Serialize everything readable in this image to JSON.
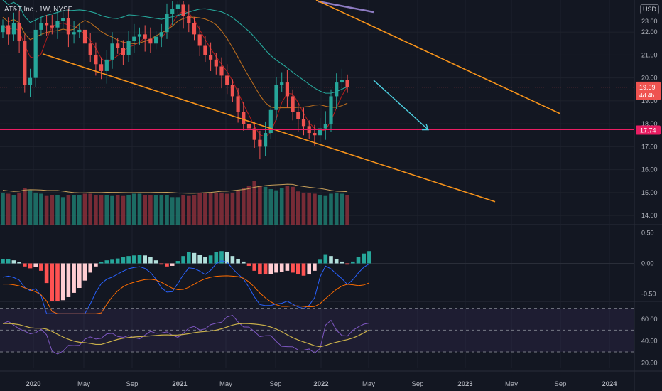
{
  "symbol_title": "AT&T Inc., 1W, NYSE",
  "currency": "USD",
  "colors": {
    "background": "#131722",
    "up": "#26a69a",
    "down": "#ef5350",
    "up_volume": "#1f7a6e",
    "down_volume": "#8a2f3a",
    "trendline": "#f7931a",
    "projection_arrow": "#4dd0e1",
    "support_line": "#e91e63",
    "price_badge": "#ef5350",
    "support_badge": "#e91e63",
    "ma_red": "#b71c1c",
    "ma_orange": "#b86c1e",
    "ma_teal": "#26a69a",
    "ma_purple": "#8e7cc3",
    "macd_line": "#2962ff",
    "signal_line": "#ff6d00",
    "rsi_line": "#7e57c2",
    "rsi_ma": "#c9b04a"
  },
  "chart_data": [
    {
      "type": "candlestick",
      "panel": "price",
      "title": "AT&T Inc., 1W, NYSE",
      "y_unit": "USD",
      "ylim": [
        13.6,
        23.4
      ],
      "y_ticks": [
        "14.00",
        "15.00",
        "16.00",
        "17.00",
        "18.00",
        "19.00",
        "20.00",
        "21.00",
        "22.00"
      ],
      "x_tick_labels": [
        "2020",
        "May",
        "Sep",
        "2021",
        "May",
        "Sep",
        "2022",
        "May",
        "Sep",
        "2023",
        "May",
        "Sep",
        "2024"
      ],
      "last_price": "19.59",
      "countdown": "4d 4h",
      "support_level": 17.74,
      "support_label": "17.74",
      "volume_overlay": true,
      "annotations": [
        "descending channel upper trendline",
        "descending channel lower trendline",
        "projected move arrow to 17.74",
        "horizontal support 17.74"
      ]
    },
    {
      "type": "histogram+line",
      "panel": "MACD",
      "ylim": [
        -0.62,
        0.62
      ],
      "y_ticks": [
        "0.50",
        "0.00",
        "-0.50"
      ],
      "series": [
        {
          "kind": "histogram",
          "values": [
            0.07,
            0.07,
            0.05,
            0.02,
            -0.05,
            -0.08,
            -0.06,
            -0.12,
            -0.32,
            -0.62,
            -0.62,
            -0.6,
            -0.55,
            -0.48,
            -0.4,
            -0.28,
            -0.15,
            -0.05,
            0.02,
            0.05,
            0.06,
            0.08,
            0.1,
            0.12,
            0.13,
            0.14,
            0.13,
            0.1,
            0.05,
            -0.02,
            -0.05,
            -0.04,
            0.04,
            0.12,
            0.18,
            0.17,
            0.14,
            0.1,
            0.13,
            0.18,
            0.2,
            0.18,
            0.12,
            0.07,
            0.03,
            -0.04,
            -0.12,
            -0.18,
            -0.18,
            -0.17,
            -0.15,
            -0.14,
            -0.12,
            -0.15,
            -0.18,
            -0.2,
            -0.18,
            -0.12,
            0.06,
            0.15,
            0.12,
            0.07,
            0.03,
            -0.02,
            0.03,
            0.1,
            0.16,
            0.2
          ]
        }
      ]
    },
    {
      "type": "line",
      "panel": "RSI",
      "ylim": [
        15,
        75
      ],
      "y_ticks": [
        "60.00",
        "40.00",
        "20.00"
      ],
      "bands": [
        30,
        50,
        70
      ],
      "series": [
        {
          "name": "",
          "values": [
            56,
            56,
            55,
            53,
            48,
            45,
            49,
            52,
            44,
            30,
            30,
            31,
            34,
            36,
            38,
            41,
            42,
            43,
            44,
            45,
            46,
            46,
            44,
            43,
            43,
            44,
            45,
            47,
            48,
            49,
            47,
            44,
            45,
            48,
            50,
            53,
            52,
            51,
            53,
            57,
            59,
            61,
            62,
            59,
            54,
            51,
            48,
            46,
            45,
            43,
            40,
            37,
            34,
            33,
            33,
            33,
            31,
            28,
            35,
            55,
            57,
            50,
            47,
            44,
            48,
            54,
            57,
            55
          ]
        }
      ]
    }
  ]
}
